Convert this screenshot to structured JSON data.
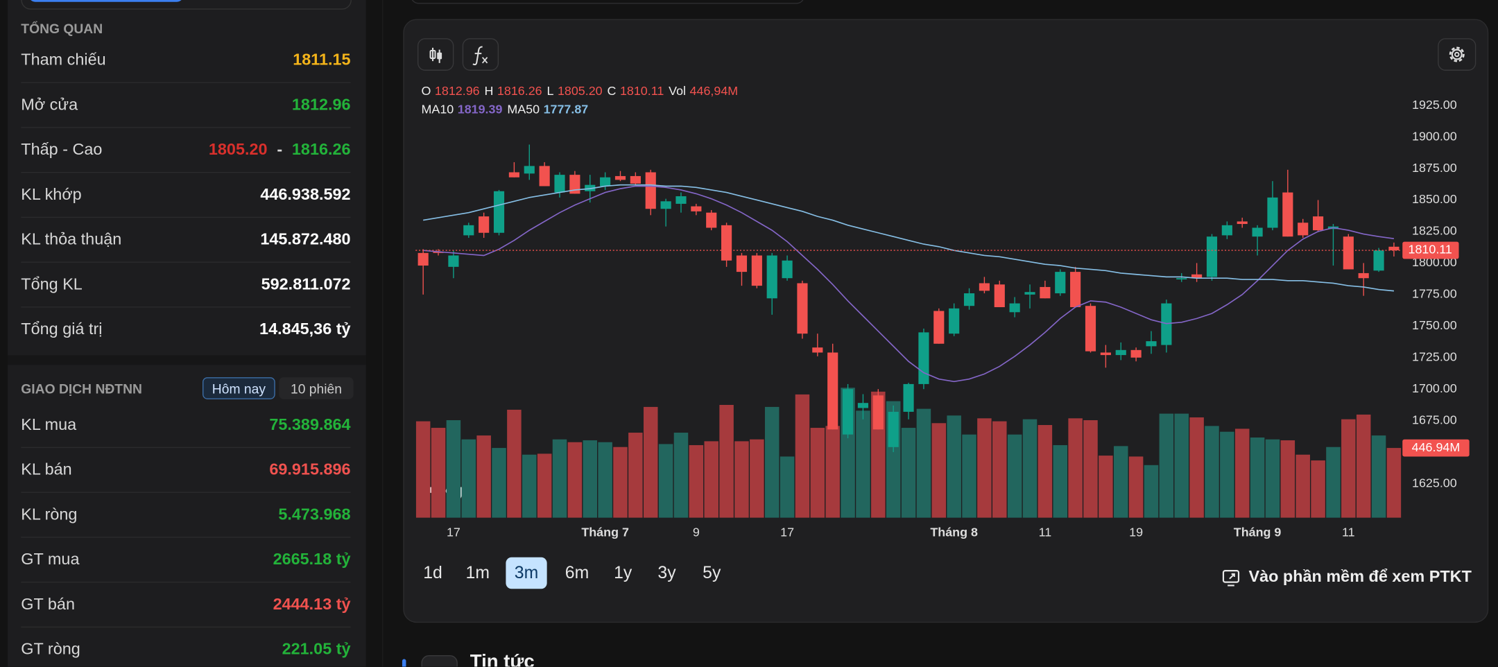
{
  "sidebar": {
    "overview": {
      "title": "TỔNG QUAN",
      "rows": [
        {
          "label": "Tham chiếu",
          "value": "1811.15",
          "color": "#f4b41a"
        },
        {
          "label": "Mở cửa",
          "value": "1812.96",
          "color": "#23b33a"
        },
        {
          "label": "Thấp - Cao",
          "low": "1805.20",
          "separator": "-",
          "high": "1816.26",
          "low_color": "#d9302c",
          "color": "#23b33a"
        },
        {
          "label": "KL khớp",
          "value": "446.938.592",
          "color": "#ffffff"
        },
        {
          "label": "KL thỏa thuận",
          "value": "145.872.480",
          "color": "#ffffff"
        },
        {
          "label": "Tổng KL",
          "value": "592.811.072",
          "color": "#ffffff"
        },
        {
          "label": "Tổng giá trị",
          "value": "14.845,36 tỷ",
          "color": "#ffffff"
        }
      ]
    },
    "foreign": {
      "title": "GIAO DỊCH NĐTNN",
      "tabs": [
        "Hôm nay",
        "10 phiên"
      ],
      "active_tab": "Hôm nay",
      "rows": [
        {
          "label": "KL mua",
          "value": "75.389.864",
          "color": "#23b33a"
        },
        {
          "label": "KL bán",
          "value": "69.915.896",
          "color": "#f0524f"
        },
        {
          "label": "KL ròng",
          "value": "5.473.968",
          "color": "#23b33a"
        },
        {
          "label": "GT mua",
          "value": "2665.18 tỷ",
          "color": "#23b33a"
        },
        {
          "label": "GT bán",
          "value": "2444.13 tỷ",
          "color": "#f0524f"
        },
        {
          "label": "GT ròng",
          "value": "221.05 tỷ",
          "color": "#23b33a"
        }
      ]
    }
  },
  "chart_data": {
    "type": "candlestick",
    "legend": [
      {
        "key": "O",
        "value": "1812.96"
      },
      {
        "key": "H",
        "value": "1816.26"
      },
      {
        "key": "L",
        "value": "1805.20"
      },
      {
        "key": "C",
        "value": "1810.11"
      },
      {
        "key": "Vol",
        "value": "446,94M"
      }
    ],
    "categories": [
      null,
      null,
      "17",
      null,
      null,
      null,
      null,
      null,
      null,
      null,
      null,
      null,
      "Tháng 7",
      null,
      null,
      null,
      null,
      null,
      "9",
      null,
      null,
      null,
      null,
      null,
      "17",
      null,
      null,
      null,
      null,
      null,
      null,
      null,
      null,
      null,
      null,
      "Tháng 8",
      null,
      null,
      null,
      null,
      null,
      "11",
      null,
      null,
      null,
      null,
      null,
      "19",
      null,
      null,
      null,
      null,
      null,
      null,
      null,
      "Tháng 9",
      null,
      null,
      null,
      null,
      null,
      "11",
      null,
      null,
      null
    ],
    "open": [
      1808,
      1809,
      1797,
      1822,
      1837,
      1824,
      1872,
      1871,
      1877,
      1856,
      1870,
      1857,
      1861,
      1869,
      1869,
      1872,
      1843,
      1847,
      1845,
      1840,
      1830,
      1806,
      1806,
      1772,
      1788,
      1784,
      1733,
      1729,
      1664,
      1685,
      1695,
      1654,
      1682,
      1704,
      1762,
      1744,
      1766,
      1784,
      1783,
      1761,
      1775,
      1781,
      1776,
      1793,
      1766,
      1729,
      1727,
      1731,
      1734,
      1735,
      1787,
      1791,
      1789,
      1822,
      1833,
      1821,
      1828,
      1856,
      1832,
      1837,
      1827,
      1821,
      1792,
      1794,
      1812.96
    ],
    "high": [
      1811,
      1811,
      1810,
      1832,
      1840,
      1858,
      1880,
      1894,
      1880,
      1872,
      1873,
      1870,
      1872,
      1873,
      1872,
      1874,
      1851,
      1856,
      1847,
      1842,
      1832,
      1808,
      1808,
      1808,
      1806,
      1786,
      1744,
      1736,
      1704,
      1696,
      1700,
      1687,
      1705,
      1748,
      1764,
      1768,
      1780,
      1789,
      1786,
      1773,
      1783,
      1786,
      1795,
      1797,
      1768,
      1735,
      1737,
      1733,
      1746,
      1771,
      1792,
      1800,
      1823,
      1833,
      1836,
      1830,
      1865,
      1874,
      1835,
      1850,
      1831,
      1823,
      1800,
      1812,
      1816.26
    ],
    "low": [
      1775,
      1806,
      1788,
      1820,
      1820,
      1822,
      1868,
      1866,
      1861,
      1852,
      1855,
      1848,
      1858,
      1865,
      1862,
      1838,
      1829,
      1840,
      1838,
      1826,
      1797,
      1782,
      1780,
      1759,
      1786,
      1740,
      1726,
      1668,
      1661,
      1676,
      1668,
      1650,
      1676,
      1700,
      1736,
      1742,
      1763,
      1776,
      1765,
      1757,
      1764,
      1772,
      1774,
      1765,
      1729,
      1717,
      1723,
      1722,
      1728,
      1729,
      1785,
      1785,
      1786,
      1819,
      1828,
      1806,
      1826,
      1821,
      1820,
      1825,
      1798,
      1795,
      1774,
      1793,
      1805.2
    ],
    "close": [
      1798,
      1808,
      1806,
      1830,
      1824,
      1857,
      1868,
      1877,
      1861,
      1870,
      1855,
      1862,
      1868,
      1866,
      1863,
      1843,
      1849,
      1853,
      1841,
      1828,
      1802,
      1793,
      1782,
      1806,
      1802,
      1744,
      1729,
      1668,
      1700,
      1689,
      1668,
      1682,
      1704,
      1745,
      1736,
      1764,
      1776,
      1778,
      1765,
      1768,
      1777,
      1772,
      1793,
      1765,
      1730,
      1727,
      1731,
      1725,
      1738,
      1768,
      1788,
      1788,
      1821,
      1830,
      1831,
      1828,
      1852,
      1821,
      1822,
      1826,
      1829,
      1795,
      1788,
      1810,
      1810.11
    ],
    "volume": [
      618,
      576,
      625,
      502,
      527,
      447,
      692,
      404,
      410,
      502,
      484,
      496,
      484,
      453,
      545,
      710,
      472,
      545,
      465,
      490,
      723,
      490,
      502,
      710,
      392,
      790,
      576,
      588,
      833,
      686,
      808,
      747,
      576,
      698,
      606,
      655,
      533,
      637,
      618,
      533,
      631,
      594,
      465,
      637,
      625,
      398,
      459,
      392,
      337,
      667,
      667,
      643,
      588,
      551,
      570,
      514,
      502,
      496,
      404,
      367,
      453,
      631,
      661,
      527,
      446.94
    ],
    "volume_tag": "446.94M",
    "ma": [
      {
        "name": "MA10",
        "color": "#8466c8",
        "values": [
          1810,
          1809,
          1808,
          1807,
          1806,
          1811,
          1818,
          1826,
          1833,
          1840,
          1846,
          1851,
          1856,
          1859,
          1861,
          1861,
          1860,
          1858,
          1855,
          1851,
          1846,
          1840,
          1833,
          1826,
          1817,
          1806,
          1795,
          1783,
          1770,
          1758,
          1746,
          1734,
          1722,
          1713,
          1708,
          1706,
          1708,
          1712,
          1718,
          1726,
          1735,
          1745,
          1756,
          1765,
          1770,
          1769,
          1765,
          1760,
          1755,
          1752,
          1753,
          1756,
          1760,
          1767,
          1775,
          1786,
          1798,
          1810,
          1819,
          1825,
          1828,
          1826,
          1823,
          1821,
          1819.39
        ]
      },
      {
        "name": "MA50",
        "color": "#86bfe6",
        "values": [
          1834,
          1836,
          1838,
          1840,
          1843,
          1846,
          1849,
          1852,
          1854,
          1856,
          1858,
          1859,
          1861,
          1862,
          1862,
          1862,
          1861,
          1861,
          1860,
          1858,
          1856,
          1853,
          1850,
          1847,
          1844,
          1841,
          1837,
          1834,
          1830,
          1827,
          1824,
          1821,
          1818,
          1815,
          1813,
          1810,
          1808,
          1806,
          1805,
          1803,
          1801,
          1799,
          1798,
          1796,
          1795,
          1794,
          1792,
          1791,
          1790,
          1789,
          1789,
          1788,
          1788,
          1788,
          1787,
          1787,
          1787,
          1786,
          1786,
          1785,
          1784,
          1782,
          1781,
          1779,
          1777.87
        ]
      }
    ],
    "up_color": "#0fa089",
    "down_color": "#f2524f",
    "volume_up_color": "#22665e",
    "volume_down_color": "#a63a3d",
    "ylim": [
      1598,
      1942
    ],
    "y2lim": [
      0,
      2780
    ],
    "yticks": [
      {
        "value": 1625,
        "label": "1625.00"
      },
      {
        "value": 1650,
        "label": "1650.00"
      },
      {
        "value": 1675,
        "label": "1675.00"
      },
      {
        "value": 1700,
        "label": "1700.00"
      },
      {
        "value": 1725,
        "label": "1725.00"
      },
      {
        "value": 1750,
        "label": "1750.00"
      },
      {
        "value": 1775,
        "label": "1775.00"
      },
      {
        "value": 1800,
        "label": "1800.00"
      },
      {
        "value": 1825,
        "label": "1825.00"
      },
      {
        "value": 1850,
        "label": "1850.00"
      },
      {
        "value": 1875,
        "label": "1875.00"
      },
      {
        "value": 1900,
        "label": "1900.00"
      },
      {
        "value": 1925,
        "label": "1925.00"
      }
    ],
    "grid": false
  },
  "periods": [
    "1d",
    "1m",
    "3m",
    "6m",
    "1y",
    "3y",
    "5y"
  ],
  "active_period": "3m",
  "software_link": "Vào phần mềm để xem PTKT",
  "news_title": "Tin tức"
}
